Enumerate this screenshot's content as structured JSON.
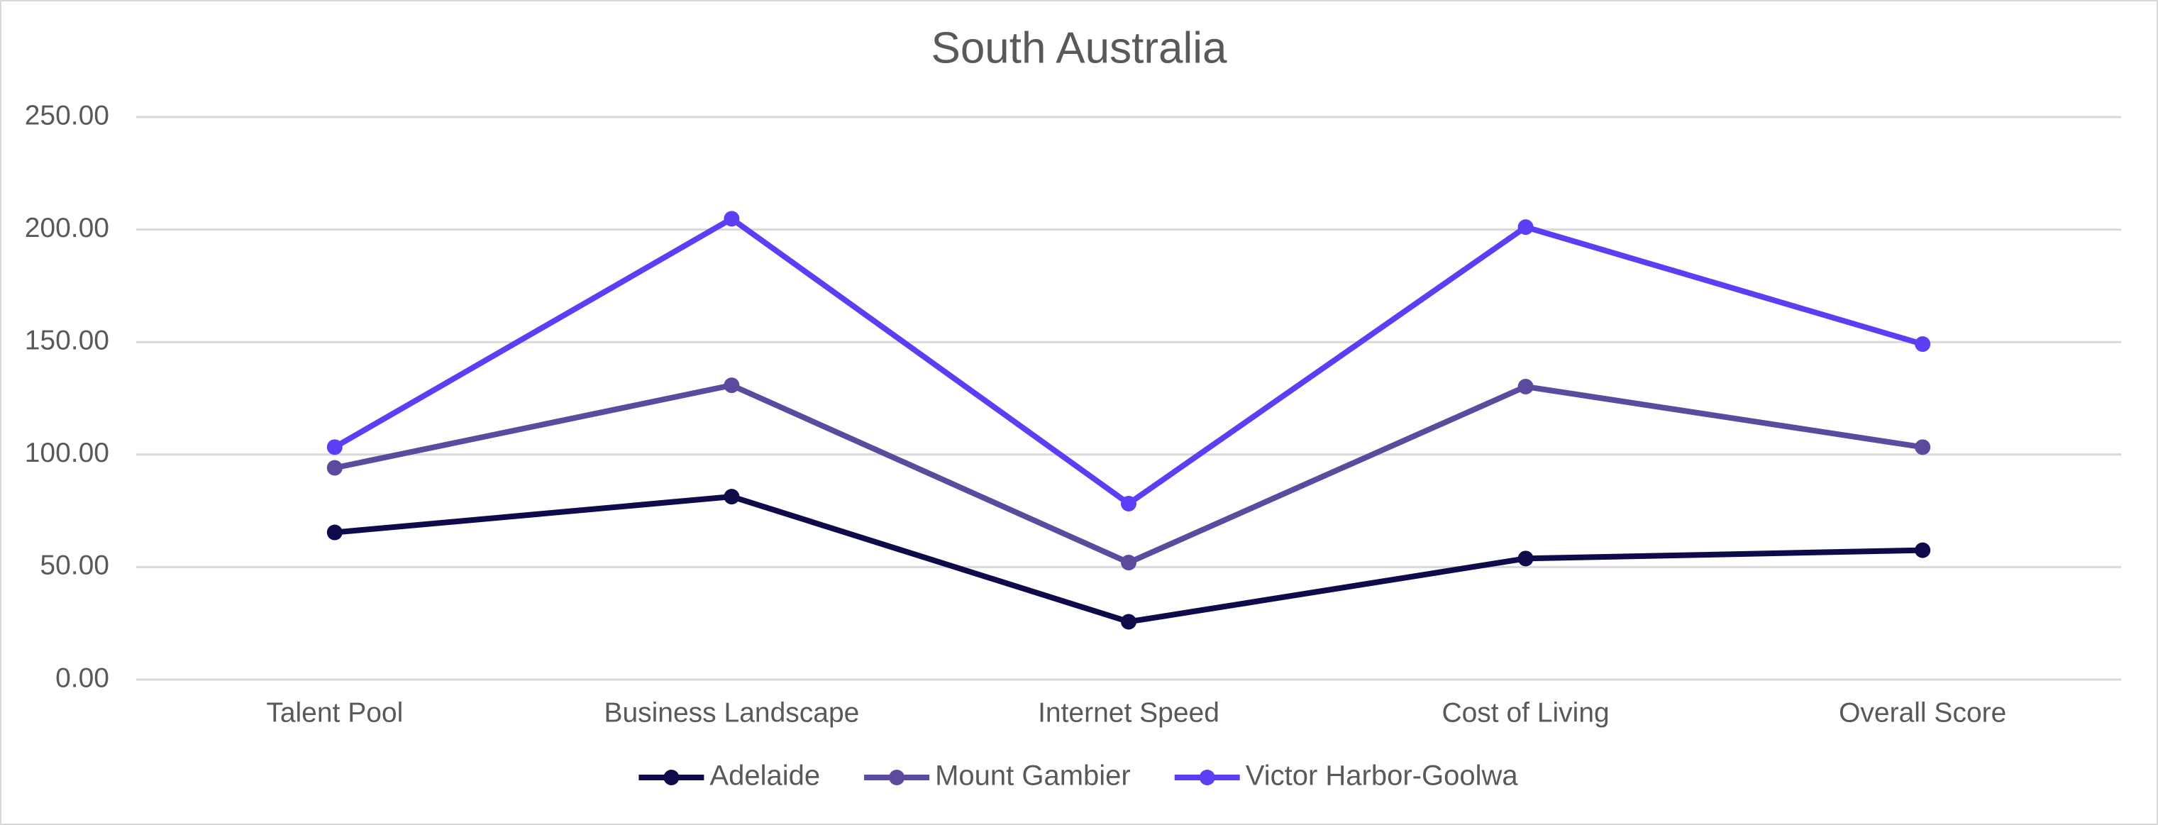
{
  "chart_data": {
    "type": "line",
    "title": "South Australia",
    "categories": [
      "Talent Pool",
      "Business Landscape",
      "Internet Speed",
      "Cost of Living",
      "Overall Score"
    ],
    "series": [
      {
        "name": "Adelaide",
        "color": "#0f0a4a",
        "values": [
          65.4,
          81.3,
          25.7,
          53.8,
          57.5
        ]
      },
      {
        "name": "Mount Gambier",
        "color": "#5b4a9e",
        "values": [
          94.1,
          130.8,
          52.0,
          130.2,
          103.3
        ]
      },
      {
        "name": "Victor Harbor-Goolwa",
        "color": "#5a3ff5",
        "values": [
          103.3,
          204.8,
          78.2,
          201.1,
          149.1
        ]
      }
    ],
    "ylim": [
      0,
      250
    ],
    "yticks": [
      {
        "value": 0,
        "label": "0.00"
      },
      {
        "value": 50,
        "label": "50.00"
      },
      {
        "value": 100,
        "label": "100.00"
      },
      {
        "value": 150,
        "label": "150.00"
      },
      {
        "value": 200,
        "label": "200.00"
      },
      {
        "value": 250,
        "label": "250.00"
      }
    ],
    "grid": true,
    "legend": "bottom"
  }
}
